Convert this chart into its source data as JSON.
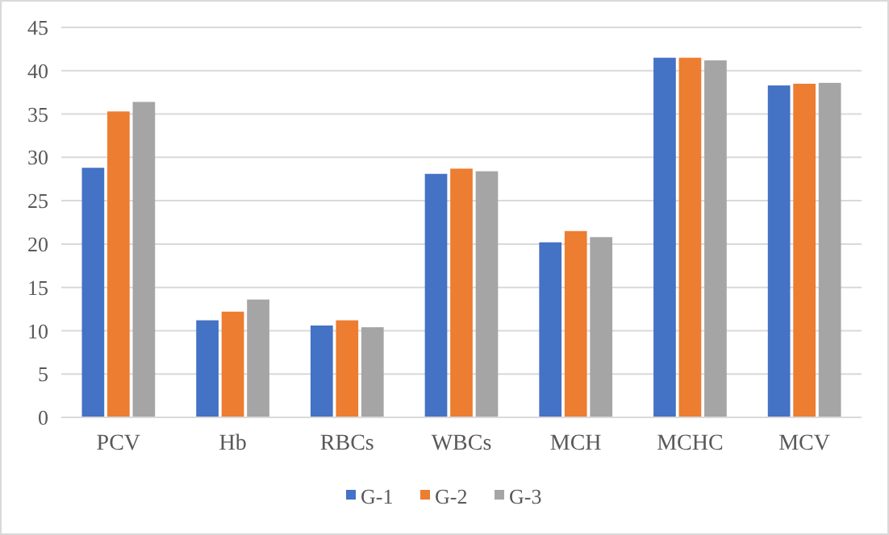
{
  "chart_data": {
    "type": "bar",
    "categories": [
      "PCV",
      "Hb",
      "RBCs",
      "WBCs",
      "MCH",
      "MCHC",
      "MCV"
    ],
    "series": [
      {
        "name": "G-1",
        "color": "#4472c4",
        "values": [
          28.8,
          11.2,
          10.6,
          28.1,
          20.2,
          41.5,
          38.3
        ]
      },
      {
        "name": "G-2",
        "color": "#ed7d31",
        "values": [
          35.3,
          12.2,
          11.2,
          28.7,
          21.5,
          41.5,
          38.5
        ]
      },
      {
        "name": "G-3",
        "color": "#a5a5a5",
        "values": [
          36.4,
          13.6,
          10.4,
          28.4,
          20.8,
          41.2,
          38.6
        ]
      }
    ],
    "ylim": [
      0,
      45
    ],
    "yticks": [
      0,
      5,
      10,
      15,
      20,
      25,
      30,
      35,
      40,
      45
    ],
    "grid": "y",
    "legend": "bottom"
  }
}
